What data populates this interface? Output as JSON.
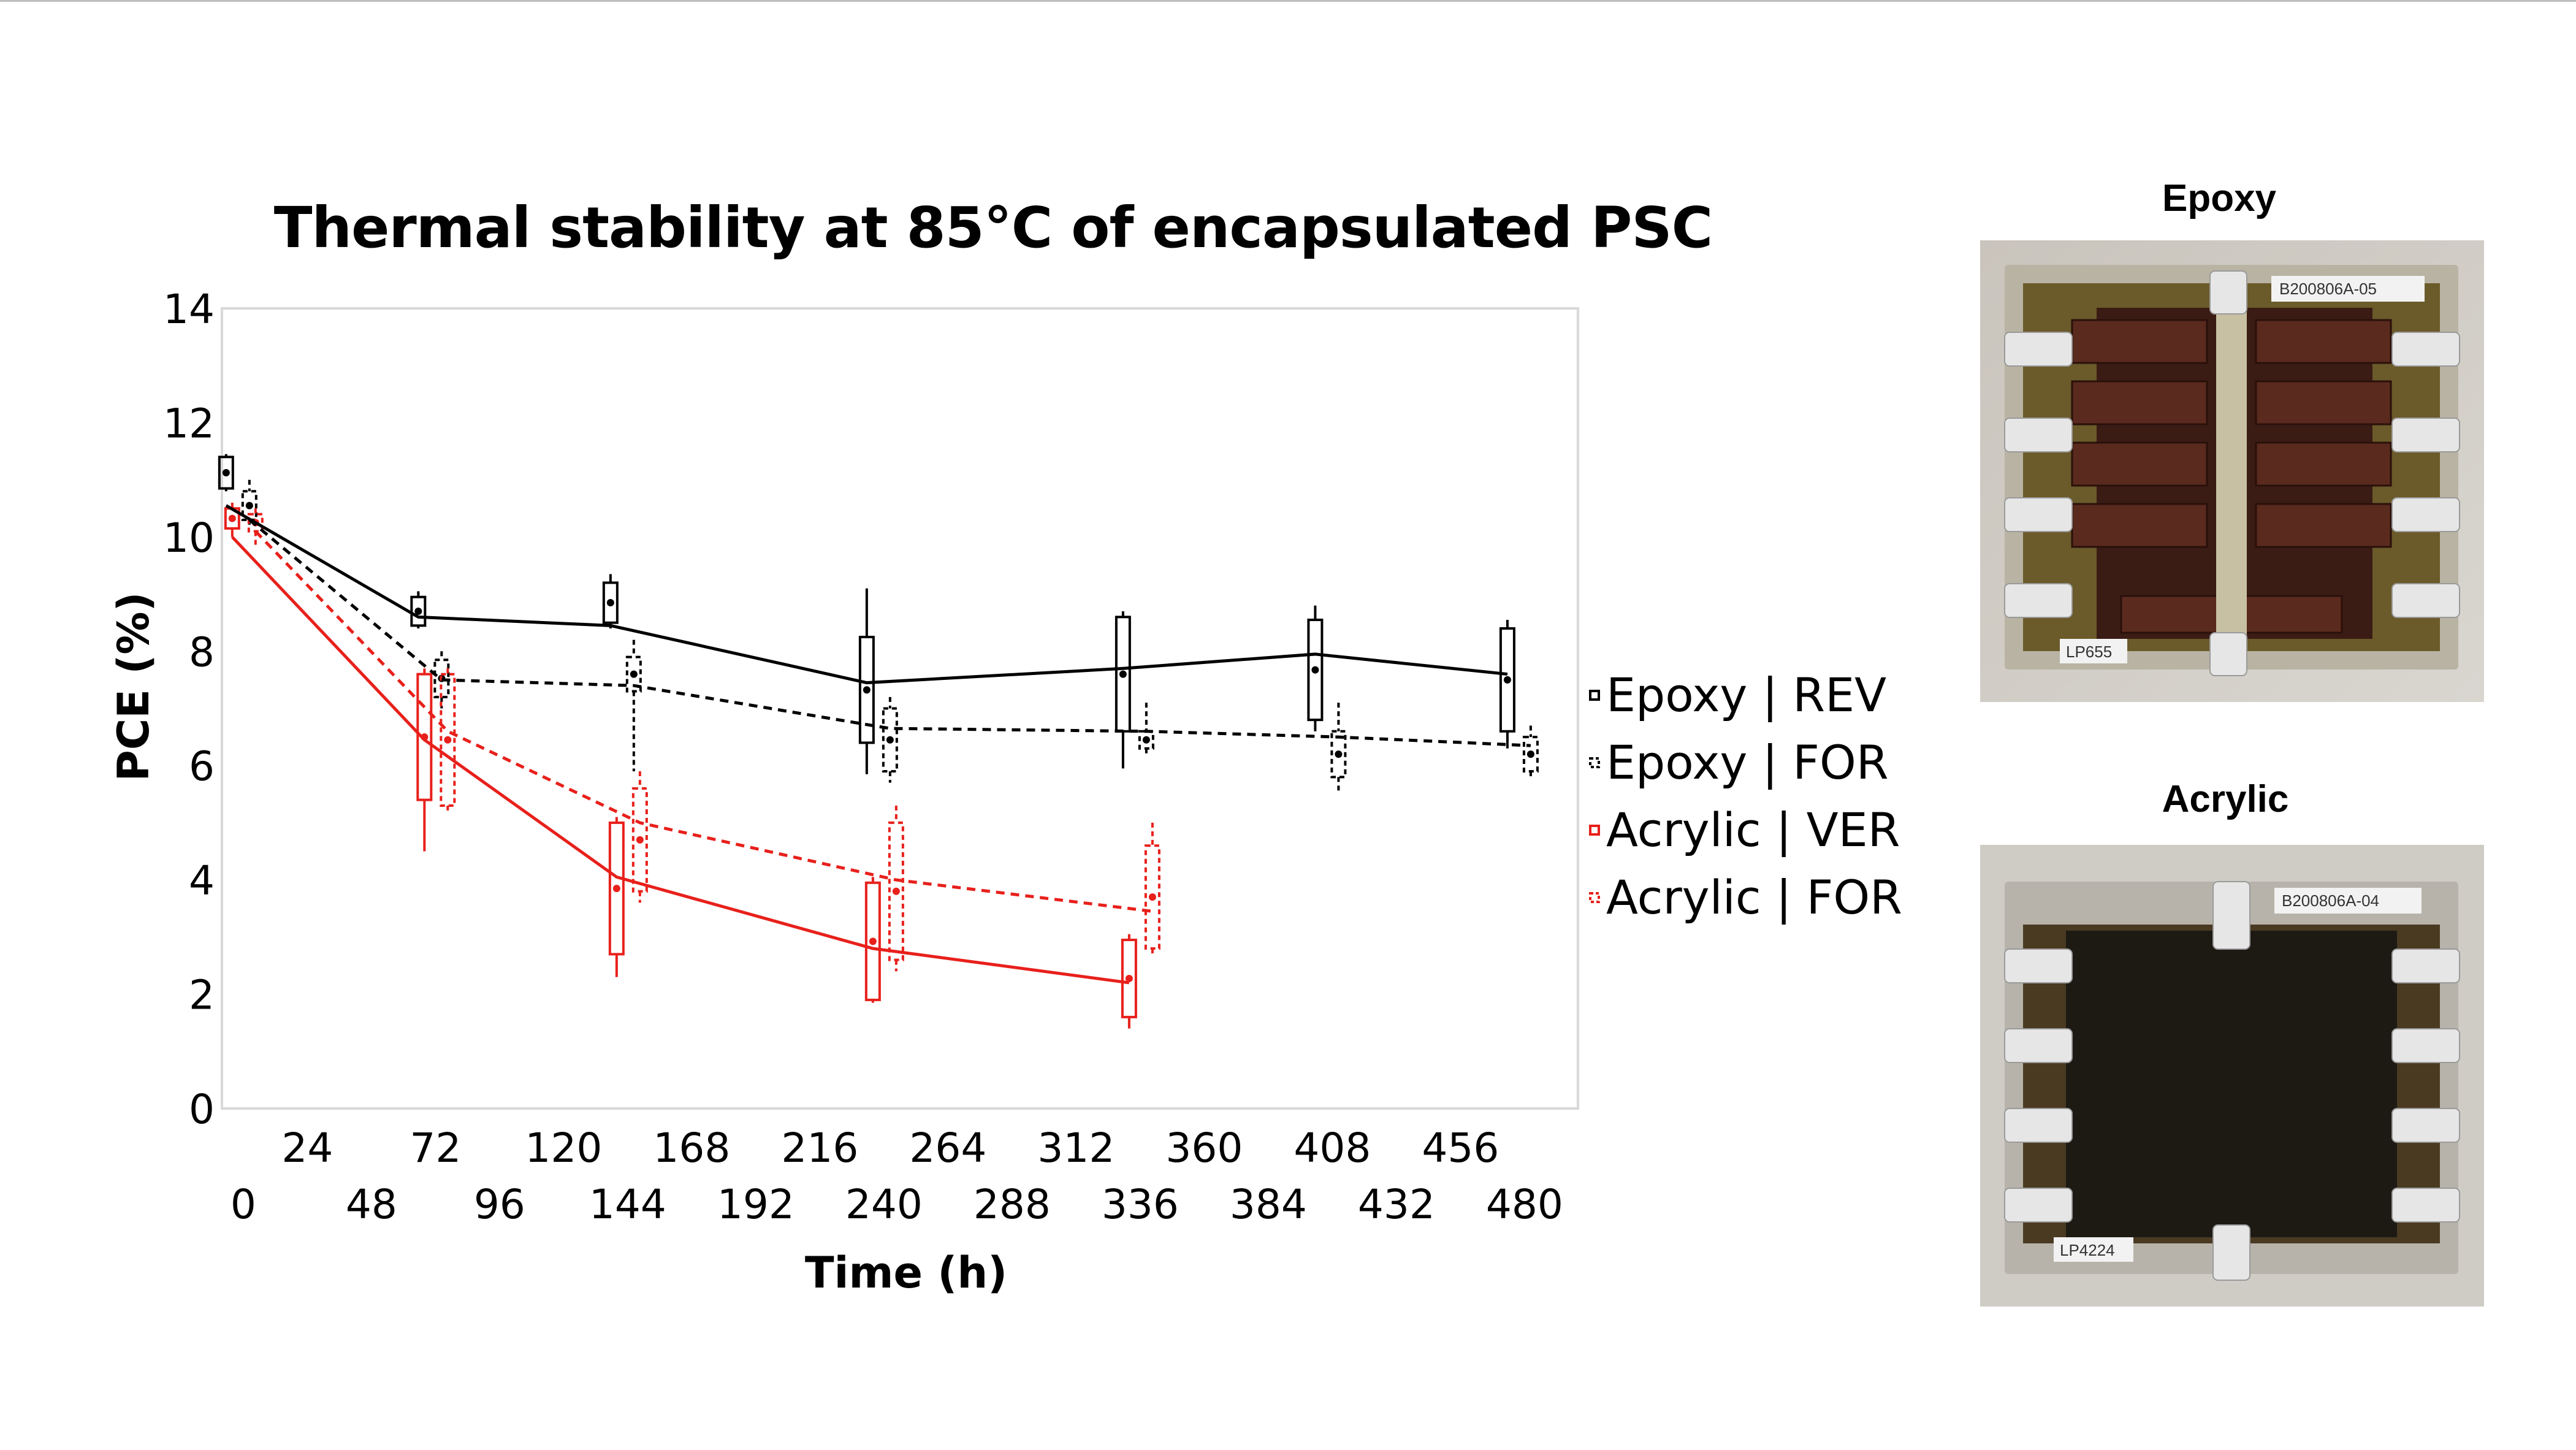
{
  "chart_data": {
    "type": "line",
    "title": "Thermal stability at 85°C of encapsulated PSC",
    "xlabel": "Time (h)",
    "ylabel": "PCE (%)",
    "xlim": [
      -8,
      500
    ],
    "ylim": [
      0,
      14
    ],
    "yticks": [
      "0",
      "2",
      "4",
      "6",
      "8",
      "10",
      "12",
      "14"
    ],
    "xticks_upper": [
      "24",
      "72",
      "120",
      "168",
      "216",
      "264",
      "312",
      "360",
      "408",
      "456"
    ],
    "xticks_lower": [
      "0",
      "48",
      "96",
      "144",
      "192",
      "240",
      "288",
      "336",
      "384",
      "432",
      "480"
    ],
    "grid": false,
    "legend_position": "right",
    "series": [
      {
        "name": "Epoxy | REV",
        "color": "#000000",
        "dash": "solid",
        "x": [
          0,
          72,
          144,
          240,
          336,
          408,
          480
        ],
        "y": [
          10.55,
          8.6,
          8.45,
          7.45,
          7.7,
          7.95,
          7.6
        ],
        "boxes": [
          {
            "x": 0,
            "q1": 10.85,
            "q3": 11.4,
            "min": 10.8,
            "max": 11.45
          },
          {
            "x": 72,
            "q1": 8.45,
            "q3": 8.95,
            "min": 8.4,
            "max": 9.05
          },
          {
            "x": 144,
            "q1": 8.5,
            "q3": 9.2,
            "min": 8.4,
            "max": 9.35
          },
          {
            "x": 240,
            "q1": 6.4,
            "q3": 8.25,
            "min": 5.85,
            "max": 9.1
          },
          {
            "x": 336,
            "q1": 6.6,
            "q3": 8.6,
            "min": 5.95,
            "max": 8.7
          },
          {
            "x": 408,
            "q1": 6.8,
            "q3": 8.55,
            "min": 6.6,
            "max": 8.8
          },
          {
            "x": 480,
            "q1": 6.6,
            "q3": 8.4,
            "min": 6.3,
            "max": 8.55
          }
        ]
      },
      {
        "name": "Epoxy | FOR",
        "color": "#000000",
        "dash": "dashed",
        "x": [
          0,
          72,
          144,
          240,
          336,
          408,
          480
        ],
        "y": [
          10.3,
          7.5,
          7.4,
          6.65,
          6.6,
          6.5,
          6.35
        ],
        "boxes": [
          {
            "x": 0,
            "q1": 10.3,
            "q3": 10.8,
            "min": 10.2,
            "max": 11.0
          },
          {
            "x": 72,
            "q1": 7.2,
            "q3": 7.85,
            "min": 7.0,
            "max": 8.0
          },
          {
            "x": 144,
            "q1": 7.3,
            "q3": 7.9,
            "min": 5.9,
            "max": 8.2
          },
          {
            "x": 240,
            "q1": 5.9,
            "q3": 7.0,
            "min": 5.7,
            "max": 7.2
          },
          {
            "x": 336,
            "q1": 6.3,
            "q3": 6.6,
            "min": 6.2,
            "max": 7.1
          },
          {
            "x": 408,
            "q1": 5.8,
            "q3": 6.6,
            "min": 5.5,
            "max": 7.1
          },
          {
            "x": 480,
            "q1": 5.9,
            "q3": 6.5,
            "min": 5.8,
            "max": 6.7
          }
        ]
      },
      {
        "name": "Acrylic | VER",
        "color": "#e8201b",
        "dash": "solid",
        "x": [
          0,
          72,
          144,
          240,
          336
        ],
        "y": [
          10.0,
          6.45,
          4.05,
          2.8,
          2.2
        ],
        "boxes": [
          {
            "x": 0,
            "q1": 10.15,
            "q3": 10.5,
            "min": 10.0,
            "max": 10.6
          },
          {
            "x": 72,
            "q1": 5.4,
            "q3": 7.6,
            "min": 4.5,
            "max": 7.7
          },
          {
            "x": 144,
            "q1": 2.7,
            "q3": 5.0,
            "min": 2.3,
            "max": 5.1
          },
          {
            "x": 240,
            "q1": 1.9,
            "q3": 3.95,
            "min": 1.85,
            "max": 4.05
          },
          {
            "x": 336,
            "q1": 1.6,
            "q3": 2.95,
            "min": 1.4,
            "max": 3.05
          }
        ]
      },
      {
        "name": "Acrylic | FOR",
        "color": "#e8201b",
        "dash": "dashed",
        "x": [
          0,
          72,
          144,
          240,
          336
        ],
        "y": [
          10.1,
          6.6,
          5.0,
          4.0,
          3.45
        ],
        "boxes": [
          {
            "x": 0,
            "q1": 10.1,
            "q3": 10.4,
            "min": 9.8,
            "max": 10.5
          },
          {
            "x": 72,
            "q1": 5.3,
            "q3": 7.6,
            "min": 5.2,
            "max": 7.7
          },
          {
            "x": 144,
            "q1": 3.8,
            "q3": 5.6,
            "min": 3.6,
            "max": 5.9
          },
          {
            "x": 240,
            "q1": 2.6,
            "q3": 5.0,
            "min": 2.4,
            "max": 5.3
          },
          {
            "x": 336,
            "q1": 2.8,
            "q3": 4.6,
            "min": 2.7,
            "max": 5.0
          }
        ]
      }
    ]
  },
  "photos": [
    {
      "label": "Epoxy",
      "id_tag": "B200806A-05",
      "lp_tag": "LP655"
    },
    {
      "label": "Acrylic",
      "id_tag": "B200806A-04",
      "lp_tag": "LP4224"
    }
  ]
}
